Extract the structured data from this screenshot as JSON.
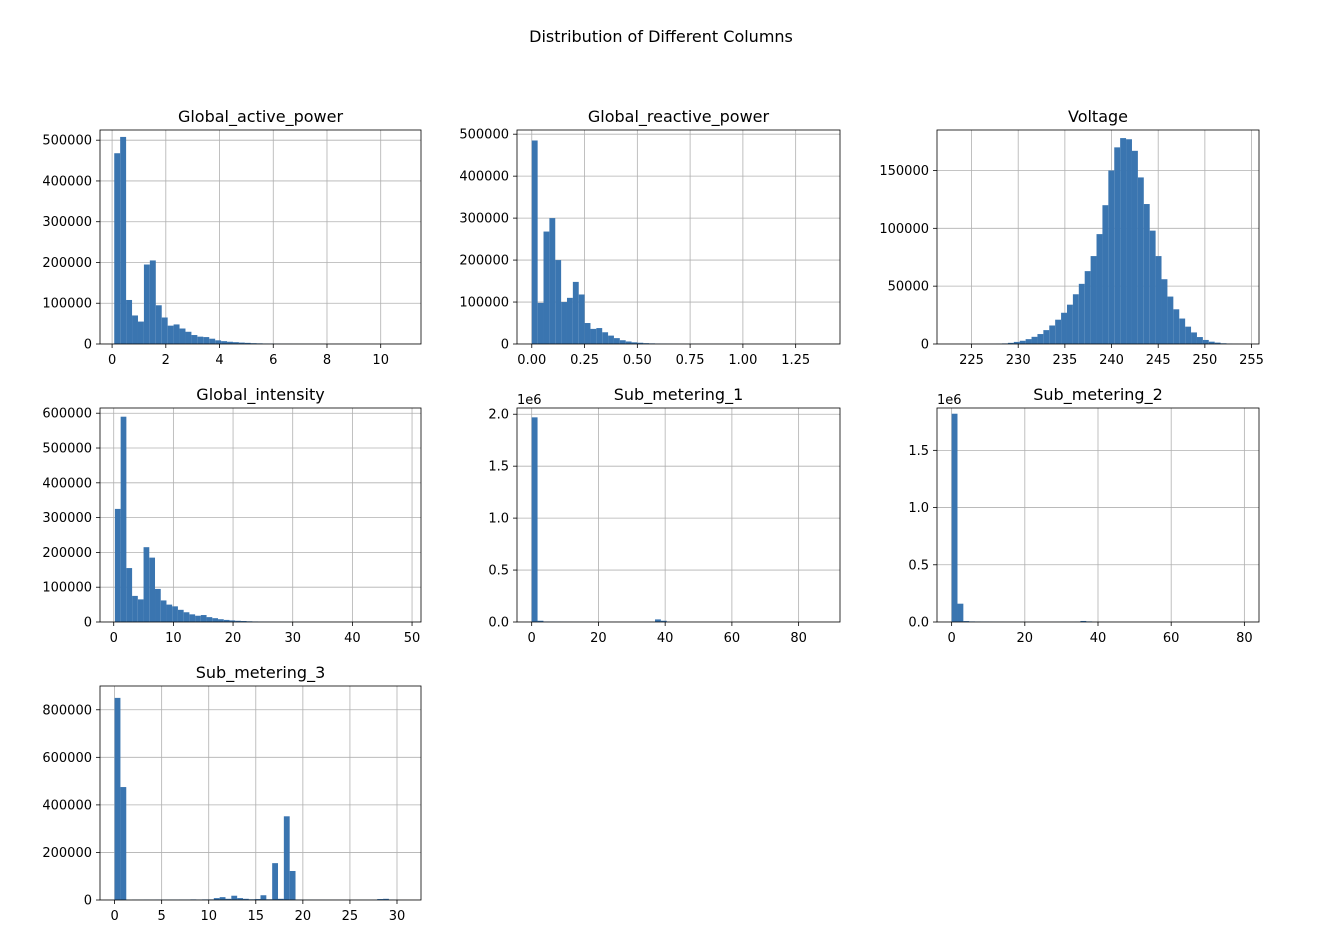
{
  "figure": {
    "suptitle": "Distribution of Different Columns"
  },
  "colors": {
    "bar": "#3a75b0",
    "grid": "#b0b0b0",
    "frame": "#000000"
  },
  "chart_data": [
    {
      "type": "bar",
      "title": "Global_active_power",
      "xlim": [
        -0.45,
        11.5
      ],
      "ylim": [
        0,
        525000
      ],
      "xticks": [
        0,
        2,
        4,
        6,
        8,
        10
      ],
      "xtick_labels": [
        "0",
        "2",
        "4",
        "6",
        "8",
        "10"
      ],
      "yticks": [
        0,
        100000,
        200000,
        300000,
        400000,
        500000
      ],
      "ytick_labels": [
        "0",
        "100000",
        "200000",
        "300000",
        "400000",
        "500000"
      ],
      "y_offset_label": "",
      "grid": true,
      "bin_start": 0.08,
      "bin_width": 0.221,
      "values": [
        468000,
        508000,
        108000,
        70000,
        55000,
        195000,
        205000,
        95000,
        65000,
        45000,
        48000,
        38000,
        30000,
        22000,
        18000,
        17000,
        13000,
        9000,
        7000,
        5500,
        4500,
        3500,
        2800,
        2000,
        1600,
        1200,
        900,
        700,
        500,
        400,
        300,
        250,
        200,
        150,
        120,
        100,
        80,
        60,
        50,
        40,
        30,
        25,
        20,
        15,
        12,
        10,
        8,
        6,
        4,
        3
      ]
    },
    {
      "type": "bar",
      "title": "Global_reactive_power",
      "xlim": [
        -0.07,
        1.46
      ],
      "ylim": [
        0,
        510000
      ],
      "xticks": [
        0,
        0.25,
        0.5,
        0.75,
        1.0,
        1.25
      ],
      "xtick_labels": [
        "0.00",
        "0.25",
        "0.50",
        "0.75",
        "1.00",
        "1.25"
      ],
      "yticks": [
        0,
        100000,
        200000,
        300000,
        400000,
        500000
      ],
      "ytick_labels": [
        "0",
        "100000",
        "200000",
        "300000",
        "400000",
        "500000"
      ],
      "y_offset_label": "",
      "grid": true,
      "bin_start": 0,
      "bin_width": 0.0278,
      "values": [
        485000,
        98000,
        268000,
        300000,
        200000,
        100000,
        110000,
        148000,
        118000,
        50000,
        36000,
        38000,
        28000,
        20000,
        14000,
        9000,
        6000,
        4000,
        3000,
        2000,
        1500,
        1000,
        800,
        600,
        400,
        300,
        250,
        200,
        150,
        100,
        80,
        60,
        50,
        40,
        30,
        20,
        15,
        10,
        8,
        6,
        5,
        4,
        3,
        2,
        2,
        1,
        1,
        1,
        1,
        1
      ]
    },
    {
      "type": "bar",
      "title": "Voltage",
      "xlim": [
        221.3,
        255.8
      ],
      "ylim": [
        0,
        185000
      ],
      "xticks": [
        225,
        230,
        235,
        240,
        245,
        250,
        255
      ],
      "xtick_labels": [
        "225",
        "230",
        "235",
        "240",
        "245",
        "250",
        "255"
      ],
      "yticks": [
        0,
        50000,
        100000,
        150000
      ],
      "ytick_labels": [
        "0",
        "50000",
        "100000",
        "150000"
      ],
      "y_offset_label": "",
      "grid": true,
      "bin_start": 223.2,
      "bin_width": 0.633,
      "values": [
        0,
        0,
        0,
        0,
        0,
        50,
        100,
        200,
        500,
        1000,
        1800,
        2800,
        4200,
        6200,
        8600,
        12000,
        16000,
        21000,
        27000,
        34000,
        43000,
        52000,
        63000,
        76000,
        95000,
        120000,
        150000,
        170000,
        178000,
        177000,
        167000,
        144000,
        121000,
        98000,
        76000,
        56000,
        41000,
        30000,
        22000,
        15000,
        10000,
        6000,
        3500,
        2000,
        1200,
        600,
        300,
        100,
        50,
        10
      ]
    },
    {
      "type": "bar",
      "title": "Global_intensity",
      "xlim": [
        -2.3,
        51.5
      ],
      "ylim": [
        0,
        615000
      ],
      "xticks": [
        0,
        10,
        20,
        30,
        40,
        50
      ],
      "xtick_labels": [
        "0",
        "10",
        "20",
        "30",
        "40",
        "50"
      ],
      "yticks": [
        0,
        100000,
        200000,
        300000,
        400000,
        500000,
        600000
      ],
      "ytick_labels": [
        "0",
        "100000",
        "200000",
        "300000",
        "400000",
        "500000",
        "600000"
      ],
      "y_offset_label": "",
      "grid": true,
      "bin_start": 0.2,
      "bin_width": 0.96,
      "values": [
        325000,
        590000,
        155000,
        75000,
        65000,
        215000,
        185000,
        95000,
        62000,
        50000,
        45000,
        35000,
        28000,
        22000,
        18000,
        20000,
        14000,
        11000,
        8000,
        6000,
        4500,
        3500,
        2800,
        2000,
        1500,
        1000,
        800,
        600,
        400,
        300,
        250,
        200,
        150,
        120,
        100,
        80,
        60,
        50,
        40,
        30,
        20,
        15,
        10,
        8,
        6,
        4,
        3,
        2,
        2,
        1
      ]
    },
    {
      "type": "bar",
      "title": "Sub_metering_1",
      "xlim": [
        -4.4,
        92.4
      ],
      "ylim": [
        0,
        2060000
      ],
      "xticks": [
        0,
        20,
        40,
        60,
        80
      ],
      "xtick_labels": [
        "0",
        "20",
        "40",
        "60",
        "80"
      ],
      "yticks": [
        0,
        500000,
        1000000,
        1500000,
        2000000
      ],
      "ytick_labels": [
        "0.0",
        "0.5",
        "1.0",
        "1.5",
        "2.0"
      ],
      "y_offset_label": "1e6",
      "grid": true,
      "bin_start": 0,
      "bin_width": 1.76,
      "values": [
        1970000,
        12000,
        4000,
        3000,
        2500,
        2000,
        1500,
        1200,
        1000,
        800,
        700,
        600,
        500,
        500,
        500,
        500,
        600,
        800,
        1200,
        1500,
        1800,
        25000,
        12000,
        500,
        300,
        200,
        100,
        100,
        100,
        100,
        50,
        50,
        50,
        50,
        30,
        30,
        30,
        30,
        20,
        20,
        20,
        20,
        10,
        10,
        10,
        10,
        10,
        10,
        5,
        5
      ]
    },
    {
      "type": "bar",
      "title": "Sub_metering_2",
      "xlim": [
        -4.0,
        84.0
      ],
      "ylim": [
        0,
        1870000
      ],
      "xticks": [
        0,
        20,
        40,
        60,
        80
      ],
      "xtick_labels": [
        "0",
        "20",
        "40",
        "60",
        "80"
      ],
      "yticks": [
        0,
        500000,
        1000000,
        1500000
      ],
      "ytick_labels": [
        "0.0",
        "0.5",
        "1.0",
        "1.5"
      ],
      "y_offset_label": "1e6",
      "grid": true,
      "bin_start": 0,
      "bin_width": 1.6,
      "values": [
        1820000,
        160000,
        8000,
        5000,
        4000,
        3000,
        2500,
        2000,
        1500,
        1200,
        1000,
        800,
        600,
        500,
        500,
        500,
        500,
        600,
        800,
        1000,
        1200,
        1500,
        9000,
        5000,
        400,
        300,
        200,
        150,
        100,
        100,
        80,
        60,
        50,
        40,
        30,
        30,
        20,
        20,
        20,
        15,
        15,
        10,
        10,
        10,
        10,
        10,
        10,
        5,
        5,
        5
      ]
    },
    {
      "type": "bar",
      "title": "Sub_metering_3",
      "xlim": [
        -1.55,
        32.55
      ],
      "ylim": [
        0,
        900000
      ],
      "xticks": [
        0,
        5,
        10,
        15,
        20,
        25,
        30
      ],
      "xtick_labels": [
        "0",
        "5",
        "10",
        "15",
        "20",
        "25",
        "30"
      ],
      "yticks": [
        0,
        200000,
        400000,
        600000,
        800000
      ],
      "ytick_labels": [
        "0",
        "200000",
        "400000",
        "600000",
        "800000"
      ],
      "y_offset_label": "",
      "grid": true,
      "bin_start": 0,
      "bin_width": 0.62,
      "values": [
        850000,
        475000,
        0,
        1000,
        1000,
        1500,
        1000,
        1500,
        1500,
        1500,
        1500,
        2000,
        2000,
        2500,
        2000,
        2500,
        2500,
        8000,
        12000,
        5000,
        18000,
        8000,
        5000,
        3000,
        4000,
        20000,
        3000,
        155000,
        5000,
        352000,
        122000,
        2000,
        1000,
        1000,
        800,
        800,
        600,
        500,
        500,
        500,
        500,
        400,
        400,
        400,
        600,
        4000,
        5000,
        1500,
        400,
        200
      ]
    }
  ]
}
